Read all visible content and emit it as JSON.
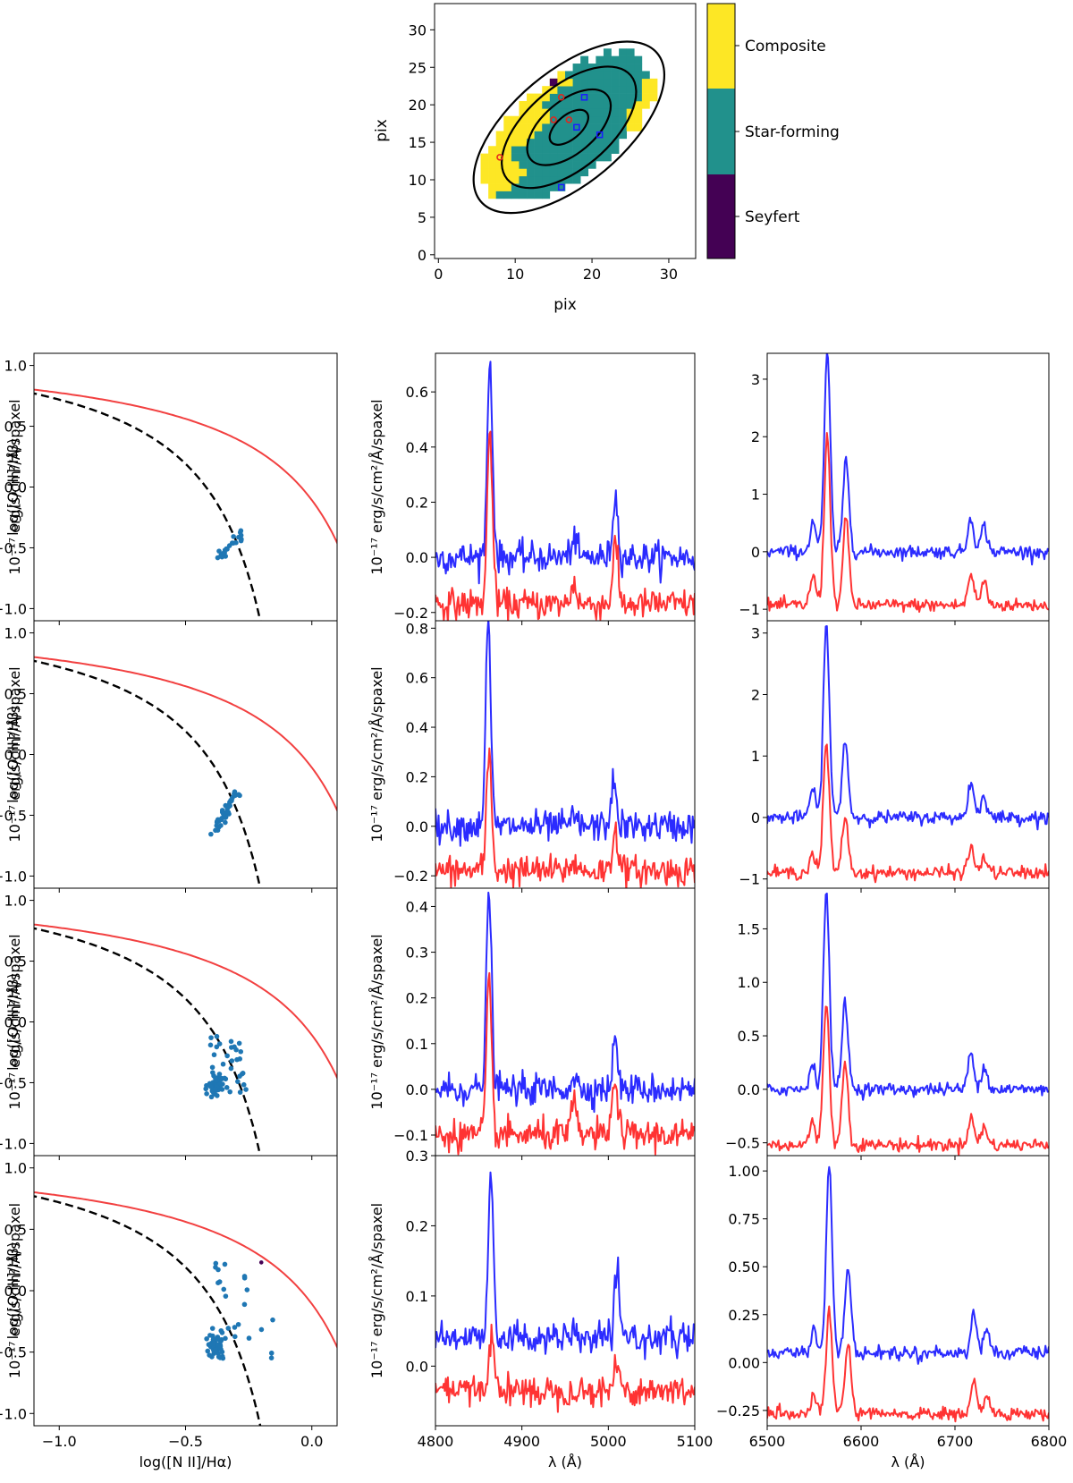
{
  "figure": {
    "colors": {
      "blue": "#2b2bff",
      "red": "#ff3333",
      "bpt_point": "#1f77b4",
      "kauffmann": "#000000",
      "kewley": "#f24040"
    }
  },
  "map": {
    "xlabel": "pix",
    "ylabel": "pix",
    "xticks": [
      "0",
      "10",
      "20",
      "30"
    ],
    "yticks": [
      "0",
      "5",
      "10",
      "15",
      "20",
      "25",
      "30"
    ],
    "xlim": [
      -0.5,
      33.5
    ],
    "ylim": [
      -0.5,
      33.5
    ],
    "class_colors": {
      "Seyfert": "#440154",
      "Star-forming": "#21918c",
      "Composite": "#fde725"
    },
    "colorbar_labels": [
      "Composite",
      "Star-forming",
      "Seyfert"
    ],
    "ellipses": {
      "center": [
        17,
        17
      ],
      "angle_deg": 40,
      "semi_axes": [
        [
          3,
          1.6
        ],
        [
          6.5,
          3.5
        ],
        [
          10.5,
          5.5
        ],
        [
          15,
          7.5
        ]
      ]
    },
    "red_circles": [
      [
        8,
        13
      ],
      [
        15,
        18
      ],
      [
        16,
        21
      ],
      [
        17,
        18
      ]
    ],
    "blue_squares": [
      [
        16,
        9
      ],
      [
        18,
        17
      ],
      [
        19,
        21
      ],
      [
        21,
        16
      ]
    ],
    "seyfert_pixel": [
      15,
      23
    ]
  },
  "bpt": {
    "xlabel": "log([N II]/Hα)",
    "ylabel": "log([O III]/Hβ)",
    "xlim": [
      -1.1,
      0.1
    ],
    "ylim": [
      -1.1,
      1.1
    ],
    "xticks": [
      "−1.0",
      "−0.5",
      "0.0"
    ],
    "yticks": [
      "−1.0",
      "−0.5",
      "0.0",
      "0.5",
      "1.0"
    ]
  },
  "spec": {
    "xlabel": "λ (Å)",
    "ylabel": "10⁻¹⁷ erg/s/cm²/Å/spaxel",
    "hbeta_xticks": [
      "4800",
      "4900",
      "5000",
      "5100"
    ],
    "halpha_xticks": [
      "6500",
      "6600",
      "6700",
      "6800"
    ]
  },
  "chart_data": [
    {
      "type": "heatmap",
      "title": "",
      "xlabel": "pix",
      "ylabel": "pix",
      "categories": [
        "Seyfert",
        "Star-forming",
        "Composite"
      ]
    },
    {
      "type": "scatter",
      "row": 1,
      "xlabel": "log([N II]/Hα)",
      "ylabel": "log([O III]/Hβ)",
      "xlim": [
        -1.1,
        0.1
      ],
      "ylim": [
        -1.1,
        1.1
      ],
      "x_range": [
        -0.38,
        -0.27
      ],
      "y_range": [
        -0.6,
        -0.38
      ]
    },
    {
      "type": "scatter",
      "row": 2,
      "xlabel": "log([N II]/Hα)",
      "ylabel": "log([O III]/Hβ)",
      "xlim": [
        -1.1,
        0.1
      ],
      "ylim": [
        -1.1,
        1.1
      ],
      "x_range": [
        -0.39,
        -0.3
      ],
      "y_range": [
        -0.64,
        -0.32
      ]
    },
    {
      "type": "scatter",
      "row": 3,
      "xlabel": "log([N II]/Hα)",
      "ylabel": "log([O III]/Hβ)",
      "xlim": [
        -1.1,
        0.1
      ],
      "ylim": [
        -1.1,
        1.1
      ],
      "x_range": [
        -0.4,
        -0.25
      ],
      "y_range": [
        -0.6,
        -0.1
      ]
    },
    {
      "type": "scatter",
      "row": 4,
      "xlabel": "log([N II]/Hα)",
      "ylabel": "log([O III]/Hβ)",
      "xlim": [
        -1.1,
        0.1
      ],
      "ylim": [
        -1.1,
        1.1
      ],
      "x_range": [
        -0.42,
        -0.16
      ],
      "y_range": [
        -0.55,
        0.23
      ]
    },
    {
      "type": "line",
      "row": 1,
      "window": "Hβ-[O III]",
      "xlabel": "",
      "xlim": [
        4800,
        5100
      ],
      "ylim": [
        -0.23,
        0.74
      ],
      "yticks": [
        -0.2,
        0.0,
        0.2,
        0.4,
        0.6
      ],
      "series": [
        {
          "color": "blue",
          "baseline": 0.0,
          "peaks": [
            [
              4863,
              0.71
            ],
            [
              4960,
              0.07
            ],
            [
              5008,
              0.22
            ]
          ]
        },
        {
          "color": "red",
          "baseline": -0.17,
          "peaks": [
            [
              4863,
              0.46
            ],
            [
              4960,
              -0.09
            ],
            [
              5008,
              0.05
            ]
          ]
        }
      ]
    },
    {
      "type": "line",
      "row": 1,
      "window": "Hα-[N II]",
      "xlabel": "",
      "xlim": [
        6500,
        6800
      ],
      "ylim": [
        -1.2,
        3.45
      ],
      "yticks": [
        -1,
        0,
        1,
        2,
        3
      ],
      "series": [
        {
          "color": "blue",
          "baseline": 0.0,
          "peaks": [
            [
              6549,
              0.52
            ],
            [
              6564,
              3.42
            ],
            [
              6584,
              1.6
            ],
            [
              6717,
              0.6
            ],
            [
              6731,
              0.45
            ]
          ]
        },
        {
          "color": "red",
          "baseline": -0.93,
          "peaks": [
            [
              6549,
              -0.43
            ],
            [
              6564,
              2.05
            ],
            [
              6584,
              0.55
            ],
            [
              6717,
              -0.4
            ],
            [
              6731,
              -0.52
            ]
          ]
        }
      ]
    },
    {
      "type": "line",
      "row": 2,
      "window": "Hβ-[O III]",
      "xlabel": "",
      "xlim": [
        4800,
        5100
      ],
      "ylim": [
        -0.25,
        0.83
      ],
      "yticks": [
        -0.2,
        0.0,
        0.2,
        0.4,
        0.6,
        0.8
      ],
      "series": [
        {
          "color": "blue",
          "baseline": 0.0,
          "peaks": [
            [
              4861,
              0.81
            ],
            [
              4960,
              0.04
            ],
            [
              5006,
              0.18
            ]
          ]
        },
        {
          "color": "red",
          "baseline": -0.18,
          "peaks": [
            [
              4862,
              0.29
            ],
            [
              4960,
              -0.14
            ],
            [
              5008,
              0.0
            ]
          ]
        }
      ]
    },
    {
      "type": "line",
      "row": 2,
      "window": "Hα-[N II]",
      "xlabel": "",
      "xlim": [
        6500,
        6800
      ],
      "ylim": [
        -1.15,
        3.2
      ],
      "yticks": [
        -1,
        0,
        1,
        2,
        3
      ],
      "series": [
        {
          "color": "blue",
          "baseline": 0.0,
          "peaks": [
            [
              6548,
              0.45
            ],
            [
              6563,
              3.15
            ],
            [
              6583,
              1.25
            ],
            [
              6717,
              0.57
            ],
            [
              6731,
              0.37
            ]
          ]
        },
        {
          "color": "red",
          "baseline": -0.9,
          "peaks": [
            [
              6548,
              -0.6
            ],
            [
              6563,
              1.2
            ],
            [
              6583,
              0.03
            ],
            [
              6717,
              -0.5
            ],
            [
              6731,
              -0.65
            ]
          ]
        }
      ]
    },
    {
      "type": "line",
      "row": 3,
      "window": "Hβ-[O III]",
      "xlabel": "",
      "xlim": [
        4800,
        5100
      ],
      "ylim": [
        -0.145,
        0.44
      ],
      "yticks": [
        -0.1,
        0.0,
        0.1,
        0.2,
        0.3,
        0.4
      ],
      "series": [
        {
          "color": "blue",
          "baseline": 0.0,
          "peaks": [
            [
              4862,
              0.43
            ],
            [
              4960,
              0.03
            ],
            [
              5008,
              0.105
            ]
          ]
        },
        {
          "color": "red",
          "baseline": -0.1,
          "peaks": [
            [
              4862,
              0.23
            ],
            [
              4960,
              -0.03
            ],
            [
              5008,
              0.03
            ]
          ]
        }
      ]
    },
    {
      "type": "line",
      "row": 3,
      "window": "Hα-[N II]",
      "xlabel": "",
      "xlim": [
        6500,
        6800
      ],
      "ylim": [
        -0.62,
        1.88
      ],
      "yticks": [
        -0.5,
        0.0,
        0.5,
        1.0,
        1.5
      ],
      "series": [
        {
          "color": "blue",
          "baseline": 0.0,
          "peaks": [
            [
              6548,
              0.23
            ],
            [
              6563,
              1.85
            ],
            [
              6583,
              0.82
            ],
            [
              6717,
              0.33
            ],
            [
              6731,
              0.22
            ]
          ]
        },
        {
          "color": "red",
          "baseline": -0.52,
          "peaks": [
            [
              6548,
              -0.32
            ],
            [
              6563,
              0.83
            ],
            [
              6583,
              0.25
            ],
            [
              6717,
              -0.26
            ],
            [
              6731,
              -0.35
            ]
          ]
        }
      ]
    },
    {
      "type": "line",
      "row": 4,
      "window": "Hβ-[O III]",
      "xlabel": "λ (Å)",
      "xlim": [
        4800,
        5100
      ],
      "ylim": [
        -0.085,
        0.3
      ],
      "yticks": [
        0.0,
        0.1,
        0.2,
        0.3
      ],
      "series": [
        {
          "color": "blue",
          "baseline": 0.04,
          "peaks": [
            [
              4864,
              0.28
            ],
            [
              5010,
              0.12
            ]
          ]
        },
        {
          "color": "red",
          "baseline": -0.035,
          "peaks": [
            [
              4865,
              0.05
            ],
            [
              5010,
              0.005
            ]
          ]
        }
      ]
    },
    {
      "type": "line",
      "row": 4,
      "window": "Hα-[N II]",
      "xlabel": "λ (Å)",
      "xlim": [
        6500,
        6800
      ],
      "ylim": [
        -0.33,
        1.08
      ],
      "yticks": [
        -0.25,
        0.0,
        0.25,
        0.5,
        0.75,
        1.0
      ],
      "series": [
        {
          "color": "blue",
          "baseline": 0.05,
          "peaks": [
            [
              6550,
              0.17
            ],
            [
              6566,
              1.03
            ],
            [
              6586,
              0.49
            ],
            [
              6720,
              0.26
            ],
            [
              6734,
              0.17
            ]
          ]
        },
        {
          "color": "red",
          "baseline": -0.27,
          "peaks": [
            [
              6550,
              -0.18
            ],
            [
              6566,
              0.27
            ],
            [
              6586,
              0.11
            ],
            [
              6720,
              -0.1
            ],
            [
              6734,
              -0.18
            ]
          ]
        }
      ]
    }
  ]
}
